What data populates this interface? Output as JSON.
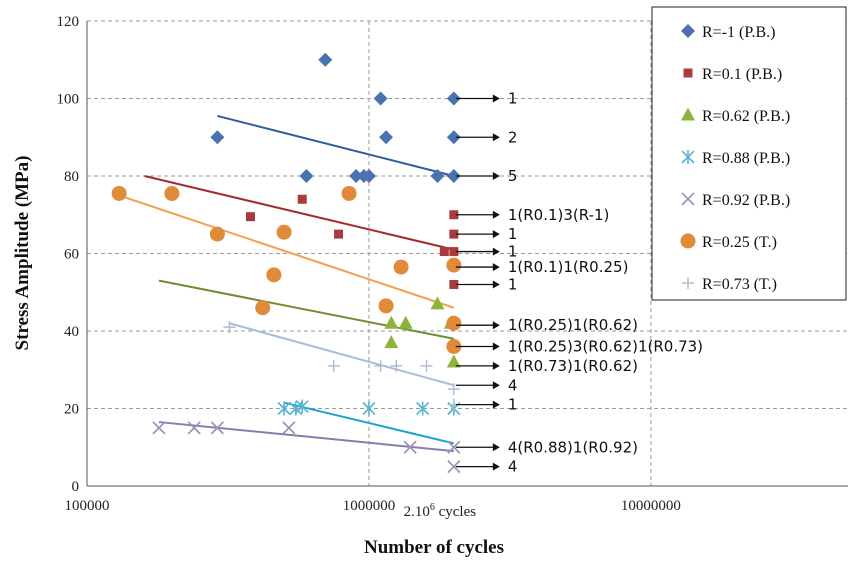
{
  "chart_data": {
    "type": "scatter",
    "xlabel": "Number of cycles",
    "ylabel": "Stress Amplitude (MPa)",
    "x_scale": "log",
    "xlim": [
      100000,
      50000000
    ],
    "ylim": [
      0,
      120
    ],
    "x_ticks": [
      100000,
      1000000,
      10000000
    ],
    "x_tick_labels": [
      "100000",
      "1000000",
      "10000000"
    ],
    "y_ticks": [
      0,
      20,
      40,
      60,
      80,
      100,
      120
    ],
    "y_tick_labels": [
      "0",
      "20",
      "40",
      "60",
      "80",
      "100",
      "120"
    ],
    "grid": "major, dashed",
    "runout_label": "2.10",
    "runout_exponent": "6",
    "runout_suffix": "cycles",
    "legend_position": "top-right, outside plot",
    "series": [
      {
        "name": "R=-1 (P.B.)",
        "marker": "diamond",
        "color": "#4a72b0",
        "points": [
          [
            290000,
            90
          ],
          [
            700000,
            110
          ],
          [
            600000,
            80
          ],
          [
            900000,
            80
          ],
          [
            960000,
            80
          ],
          [
            1000000,
            80
          ],
          [
            1100000,
            100
          ],
          [
            1150000,
            90
          ],
          [
            1750000,
            80
          ],
          [
            2000000,
            100
          ],
          [
            2000000,
            90
          ],
          [
            2000000,
            80
          ]
        ],
        "trend": [
          [
            290000,
            95.5
          ],
          [
            2000000,
            80
          ]
        ],
        "trend_color": "#2e5c9a"
      },
      {
        "name": "R=0.1 (P.B.)",
        "marker": "square",
        "color": "#a83c3c",
        "points": [
          [
            380000,
            69.5
          ],
          [
            580000,
            74
          ],
          [
            780000,
            65
          ],
          [
            1850000,
            60.5
          ],
          [
            2000000,
            70
          ],
          [
            2000000,
            65
          ],
          [
            2000000,
            60.5
          ],
          [
            2000000,
            52
          ]
        ],
        "trend": [
          [
            160000,
            80
          ],
          [
            2000000,
            61
          ]
        ],
        "trend_color": "#a52a2a"
      },
      {
        "name": "R=0.62 (P.B.)",
        "marker": "triangle",
        "color": "#8db33c",
        "points": [
          [
            1200000,
            42
          ],
          [
            1200000,
            37
          ],
          [
            1350000,
            42
          ],
          [
            1750000,
            47
          ],
          [
            1950000,
            42
          ],
          [
            2000000,
            32
          ]
        ],
        "trend": [
          [
            180000,
            53
          ],
          [
            2000000,
            38
          ]
        ],
        "trend_color": "#6e8f2e"
      },
      {
        "name": "R=0.88 (P.B.)",
        "marker": "asterisk",
        "color": "#56b4d0",
        "points": [
          [
            500000,
            20
          ],
          [
            550000,
            20
          ],
          [
            580000,
            20.5
          ],
          [
            1000000,
            20
          ],
          [
            1550000,
            20
          ],
          [
            2000000,
            20
          ]
        ],
        "trend": [
          [
            500000,
            21.5
          ],
          [
            2000000,
            11
          ]
        ],
        "trend_color": "#1ba3d4"
      },
      {
        "name": "R=0.92 (P.B.)",
        "marker": "x",
        "color": "#9d8fb8",
        "points": [
          [
            180000,
            15
          ],
          [
            240000,
            15
          ],
          [
            290000,
            15
          ],
          [
            520000,
            15
          ],
          [
            1400000,
            10
          ],
          [
            2000000,
            10
          ],
          [
            2000000,
            5
          ]
        ],
        "trend": [
          [
            180000,
            16.5
          ],
          [
            2000000,
            9
          ]
        ],
        "trend_color": "#8a7cb0"
      },
      {
        "name": "R=0.25 (T.)",
        "marker": "circle",
        "color": "#e08a3a",
        "points": [
          [
            130000,
            75.5
          ],
          [
            200000,
            75.5
          ],
          [
            290000,
            65
          ],
          [
            420000,
            46
          ],
          [
            460000,
            54.5
          ],
          [
            500000,
            65.5
          ],
          [
            850000,
            75.5
          ],
          [
            1150000,
            46.5
          ],
          [
            1300000,
            56.5
          ],
          [
            2000000,
            57
          ],
          [
            2000000,
            42
          ],
          [
            2000000,
            36
          ]
        ],
        "trend": [
          [
            130000,
            75
          ],
          [
            2000000,
            46
          ]
        ],
        "trend_color": "#f0a050"
      },
      {
        "name": "R=0.73 (T.)",
        "marker": "plus",
        "color": "#a9bcd0",
        "points": [
          [
            320000,
            41
          ],
          [
            750000,
            31
          ],
          [
            1100000,
            31
          ],
          [
            1250000,
            31
          ],
          [
            1600000,
            31
          ],
          [
            2000000,
            25
          ],
          [
            2000000,
            21
          ]
        ],
        "trend": [
          [
            320000,
            42
          ],
          [
            2000000,
            26
          ]
        ],
        "trend_color": "#a9bcd8"
      }
    ],
    "annotations": [
      {
        "y": 100,
        "text": "1"
      },
      {
        "y": 90,
        "text": "2"
      },
      {
        "y": 80,
        "text": "5"
      },
      {
        "y": 70,
        "text": "1(R0.1)3(R-1)"
      },
      {
        "y": 65,
        "text": "1"
      },
      {
        "y": 60.5,
        "text": "1"
      },
      {
        "y": 56.5,
        "text": "1(R0.1)1(R0.25)"
      },
      {
        "y": 52,
        "text": "1"
      },
      {
        "y": 41.5,
        "text": "1(R0.25)1(R0.62)"
      },
      {
        "y": 36,
        "text": "1(R0.25)3(R0.62)1(R0.73)"
      },
      {
        "y": 31,
        "text": "1(R0.73)1(R0.62)"
      },
      {
        "y": 26,
        "text": "4"
      },
      {
        "y": 21,
        "text": "1"
      },
      {
        "y": 10,
        "text": "4(R0.88)1(R0.92)"
      },
      {
        "y": 5,
        "text": "4"
      }
    ]
  }
}
